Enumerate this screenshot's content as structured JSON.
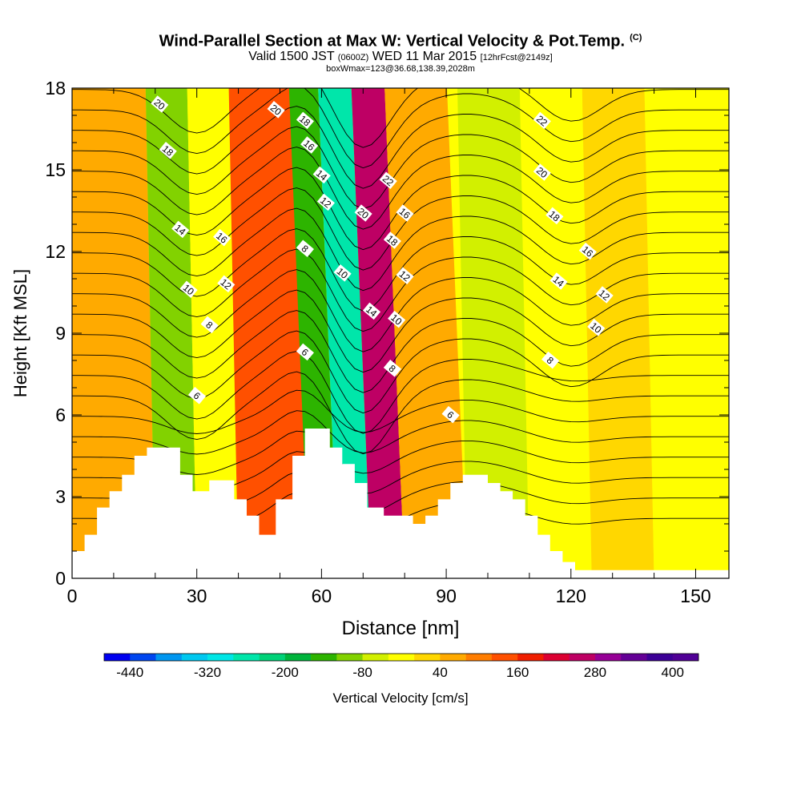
{
  "title": {
    "main": "Wind-Parallel Section at Max W: Vertical Velocity & Pot.Temp.",
    "copyright": "(C)",
    "valid_prefix": "Valid 1500 JST",
    "valid_z": "(0600Z)",
    "valid_date": "WED 11 Mar 2015",
    "fcst": "[12hrFcst@2149z]",
    "box": "boxWmax=123@36.68,138.39,2028m"
  },
  "chart_data": {
    "type": "heatmap",
    "xlabel": "Distance [nm]",
    "ylabel": "Height [Kft MSL]",
    "xlim": [
      0,
      158
    ],
    "ylim": [
      0,
      18
    ],
    "x_ticks": [
      0,
      30,
      60,
      90,
      120,
      150
    ],
    "y_ticks": [
      0,
      3,
      6,
      9,
      12,
      15,
      18
    ],
    "colorbar": {
      "label": "Vertical Velocity [cm/s]",
      "tick_labels": [
        "-440",
        "-320",
        "-200",
        "-80",
        "40",
        "160",
        "280",
        "400"
      ],
      "tick_values": [
        -440,
        -320,
        -200,
        -80,
        40,
        160,
        280,
        400
      ],
      "range": [
        -480,
        440
      ],
      "colors": [
        "#0000f0",
        "#0046f0",
        "#0096f0",
        "#00c8f0",
        "#00e6e6",
        "#00e6aa",
        "#00d278",
        "#00b43c",
        "#2db400",
        "#82d200",
        "#d2f000",
        "#ffff00",
        "#ffd700",
        "#ffaa00",
        "#ff7d00",
        "#ff5000",
        "#f01e00",
        "#dc0032",
        "#be0064",
        "#960096",
        "#640096",
        "#3c0096",
        "#500096"
      ]
    },
    "velocity_bands": [
      {
        "x": [
          0,
          20
        ],
        "value": 60
      },
      {
        "x": [
          20,
          30
        ],
        "value": -120
      },
      {
        "x": [
          30,
          40
        ],
        "value": -20
      },
      {
        "x": [
          40,
          57
        ],
        "value": 120
      },
      {
        "x": [
          57,
          64
        ],
        "value": -160
      },
      {
        "x": [
          64,
          72
        ],
        "value": -280
      },
      {
        "x": [
          72,
          80
        ],
        "value": 240
      },
      {
        "x": [
          80,
          95
        ],
        "value": 60
      },
      {
        "x": [
          95,
          110
        ],
        "value": -50
      },
      {
        "x": [
          110,
          125
        ],
        "value": -30
      },
      {
        "x": [
          125,
          140
        ],
        "value": 40
      },
      {
        "x": [
          140,
          158
        ],
        "value": -10
      }
    ],
    "terrain_steps": [
      [
        0,
        1.0
      ],
      [
        3,
        1.0
      ],
      [
        3,
        1.6
      ],
      [
        6,
        1.6
      ],
      [
        6,
        2.6
      ],
      [
        9,
        2.6
      ],
      [
        9,
        3.2
      ],
      [
        12,
        3.2
      ],
      [
        12,
        3.8
      ],
      [
        15,
        3.8
      ],
      [
        15,
        4.5
      ],
      [
        18,
        4.5
      ],
      [
        18,
        4.8
      ],
      [
        26,
        4.8
      ],
      [
        26,
        3.8
      ],
      [
        29,
        3.8
      ],
      [
        29,
        3.2
      ],
      [
        33,
        3.2
      ],
      [
        33,
        3.6
      ],
      [
        39,
        3.6
      ],
      [
        39,
        2.9
      ],
      [
        42,
        2.9
      ],
      [
        42,
        2.3
      ],
      [
        45,
        2.3
      ],
      [
        45,
        1.6
      ],
      [
        49,
        1.6
      ],
      [
        49,
        2.9
      ],
      [
        53,
        2.9
      ],
      [
        53,
        4.5
      ],
      [
        56,
        4.5
      ],
      [
        56,
        5.5
      ],
      [
        62,
        5.5
      ],
      [
        62,
        4.8
      ],
      [
        65,
        4.8
      ],
      [
        65,
        4.2
      ],
      [
        68,
        4.2
      ],
      [
        68,
        3.5
      ],
      [
        71,
        3.5
      ],
      [
        71,
        2.6
      ],
      [
        75,
        2.6
      ],
      [
        75,
        2.3
      ],
      [
        82,
        2.3
      ],
      [
        82,
        2.0
      ],
      [
        85,
        2.0
      ],
      [
        85,
        2.3
      ],
      [
        88,
        2.3
      ],
      [
        88,
        2.9
      ],
      [
        91,
        2.9
      ],
      [
        91,
        3.5
      ],
      [
        94,
        3.5
      ],
      [
        94,
        3.8
      ],
      [
        100,
        3.8
      ],
      [
        100,
        3.5
      ],
      [
        103,
        3.5
      ],
      [
        103,
        3.2
      ],
      [
        106,
        3.2
      ],
      [
        106,
        2.9
      ],
      [
        109,
        2.9
      ],
      [
        109,
        2.3
      ],
      [
        112,
        2.3
      ],
      [
        112,
        1.6
      ],
      [
        115,
        1.6
      ],
      [
        115,
        1.0
      ],
      [
        118,
        1.0
      ],
      [
        118,
        0.6
      ],
      [
        121,
        0.6
      ],
      [
        121,
        0.3
      ],
      [
        140,
        0.3
      ],
      [
        145,
        0.3
      ],
      [
        150,
        0.3
      ],
      [
        158,
        0.3
      ]
    ],
    "isentrope_labels": [
      {
        "text": "20",
        "x": 21,
        "y": 17.4
      },
      {
        "text": "18",
        "x": 23,
        "y": 15.7
      },
      {
        "text": "14",
        "x": 26,
        "y": 12.8
      },
      {
        "text": "10",
        "x": 28,
        "y": 10.6
      },
      {
        "text": "16",
        "x": 36,
        "y": 12.5
      },
      {
        "text": "12",
        "x": 37,
        "y": 10.8
      },
      {
        "text": "8",
        "x": 33,
        "y": 9.3
      },
      {
        "text": "6",
        "x": 30,
        "y": 6.7
      },
      {
        "text": "20",
        "x": 49,
        "y": 17.2
      },
      {
        "text": "18",
        "x": 56,
        "y": 16.8
      },
      {
        "text": "16",
        "x": 57,
        "y": 15.9
      },
      {
        "text": "14",
        "x": 60,
        "y": 14.8
      },
      {
        "text": "12",
        "x": 61,
        "y": 13.8
      },
      {
        "text": "8",
        "x": 56,
        "y": 12.1
      },
      {
        "text": "6",
        "x": 56,
        "y": 8.3
      },
      {
        "text": "10",
        "x": 65,
        "y": 11.2
      },
      {
        "text": "20",
        "x": 70,
        "y": 13.4
      },
      {
        "text": "14",
        "x": 72,
        "y": 9.8
      },
      {
        "text": "22",
        "x": 76,
        "y": 14.6
      },
      {
        "text": "18",
        "x": 77,
        "y": 12.4
      },
      {
        "text": "16",
        "x": 80,
        "y": 13.4
      },
      {
        "text": "12",
        "x": 80,
        "y": 11.1
      },
      {
        "text": "10",
        "x": 78,
        "y": 9.5
      },
      {
        "text": "8",
        "x": 77,
        "y": 7.7
      },
      {
        "text": "6",
        "x": 91,
        "y": 6.0
      },
      {
        "text": "22",
        "x": 113,
        "y": 16.8
      },
      {
        "text": "20",
        "x": 113,
        "y": 14.9
      },
      {
        "text": "18",
        "x": 116,
        "y": 13.3
      },
      {
        "text": "16",
        "x": 124,
        "y": 12.0
      },
      {
        "text": "14",
        "x": 117,
        "y": 10.9
      },
      {
        "text": "12",
        "x": 128,
        "y": 10.4
      },
      {
        "text": "10",
        "x": 126,
        "y": 9.2
      },
      {
        "text": "8",
        "x": 115,
        "y": 8.0
      }
    ]
  }
}
